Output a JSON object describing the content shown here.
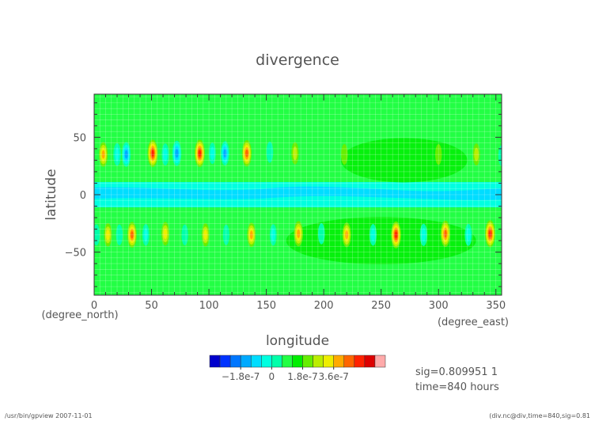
{
  "chart_data": {
    "type": "heatmap",
    "title": "divergence",
    "xlabel": "longitude",
    "ylabel": "latitude",
    "x_unit": "(degree_east)",
    "y_unit": "(degree_north)",
    "xlim": [
      0,
      355
    ],
    "ylim": [
      -87.5,
      87.5
    ],
    "xticks": [
      "0",
      "50",
      "100",
      "150",
      "200",
      "250",
      "300",
      "350"
    ],
    "yticks": [
      "50",
      "0",
      "−50"
    ],
    "grid": true,
    "colorbar": {
      "tick_labels": [
        "−1.8e-7",
        "0",
        "1.8e-7",
        "3.6e-7"
      ],
      "colors": [
        "#0000cc",
        "#0033ff",
        "#0077ff",
        "#00aaff",
        "#00ddff",
        "#00ffe0",
        "#00ffaa",
        "#22ff44",
        "#00ee00",
        "#66ee00",
        "#bbee00",
        "#eeee00",
        "#ffaa00",
        "#ff6600",
        "#ff2200",
        "#dd0000",
        "#ffaaaa"
      ]
    },
    "bands": {
      "equator_level_1": "#00ffe0",
      "equator_level_2": "#00ddff",
      "background": "#22ff44",
      "weak_positive": "#00ee00"
    },
    "north_cells": [
      {
        "lon": 8,
        "lat": 35,
        "value": 2.0
      },
      {
        "lon": 20,
        "lat": 35,
        "value": -1.2
      },
      {
        "lon": 28,
        "lat": 35,
        "value": -2.0
      },
      {
        "lon": 51,
        "lat": 36,
        "value": 3.0
      },
      {
        "lon": 62,
        "lat": 35,
        "value": -1.0
      },
      {
        "lon": 72,
        "lat": 36,
        "value": -2.2
      },
      {
        "lon": 92,
        "lat": 36,
        "value": 3.2
      },
      {
        "lon": 103,
        "lat": 36,
        "value": -0.8
      },
      {
        "lon": 114,
        "lat": 36,
        "value": -1.8
      },
      {
        "lon": 133,
        "lat": 36,
        "value": 2.6
      },
      {
        "lon": 153,
        "lat": 37,
        "value": -0.7
      },
      {
        "lon": 175,
        "lat": 36,
        "value": 1.1
      },
      {
        "lon": 218,
        "lat": 35,
        "value": 0.6
      },
      {
        "lon": 300,
        "lat": 35,
        "value": 0.6
      },
      {
        "lon": 333,
        "lat": 35,
        "value": 1.0
      },
      {
        "lon": 355,
        "lat": 34,
        "value": -0.6
      }
    ],
    "south_cells": [
      {
        "lon": 2,
        "lat": -35,
        "value": -0.7
      },
      {
        "lon": 12,
        "lat": -35,
        "value": 1.5
      },
      {
        "lon": 22,
        "lat": -35,
        "value": -0.6
      },
      {
        "lon": 33,
        "lat": -35,
        "value": 2.4
      },
      {
        "lon": 45,
        "lat": -35,
        "value": -0.9
      },
      {
        "lon": 62,
        "lat": -34,
        "value": 1.6
      },
      {
        "lon": 79,
        "lat": -35,
        "value": -0.6
      },
      {
        "lon": 97,
        "lat": -35,
        "value": 1.4
      },
      {
        "lon": 115,
        "lat": -35,
        "value": -0.5
      },
      {
        "lon": 137,
        "lat": -35,
        "value": 1.9
      },
      {
        "lon": 156,
        "lat": -35,
        "value": -0.8
      },
      {
        "lon": 178,
        "lat": -34,
        "value": 2.2
      },
      {
        "lon": 198,
        "lat": -34,
        "value": -0.7
      },
      {
        "lon": 220,
        "lat": -35,
        "value": 2.0
      },
      {
        "lon": 243,
        "lat": -35,
        "value": -0.9
      },
      {
        "lon": 263,
        "lat": -35,
        "value": 2.8
      },
      {
        "lon": 287,
        "lat": -35,
        "value": -1.1
      },
      {
        "lon": 306,
        "lat": -34,
        "value": 2.6
      },
      {
        "lon": 326,
        "lat": -35,
        "value": -1.0
      },
      {
        "lon": 345,
        "lat": -34,
        "value": 2.9
      }
    ]
  },
  "info": {
    "sig": "sig=0.809951 1",
    "time": "time=840 hours"
  },
  "footer": {
    "left": "/usr/bin/gpview   2007-11-01",
    "right": "(div.nc@div,time=840,sig=0.81"
  }
}
